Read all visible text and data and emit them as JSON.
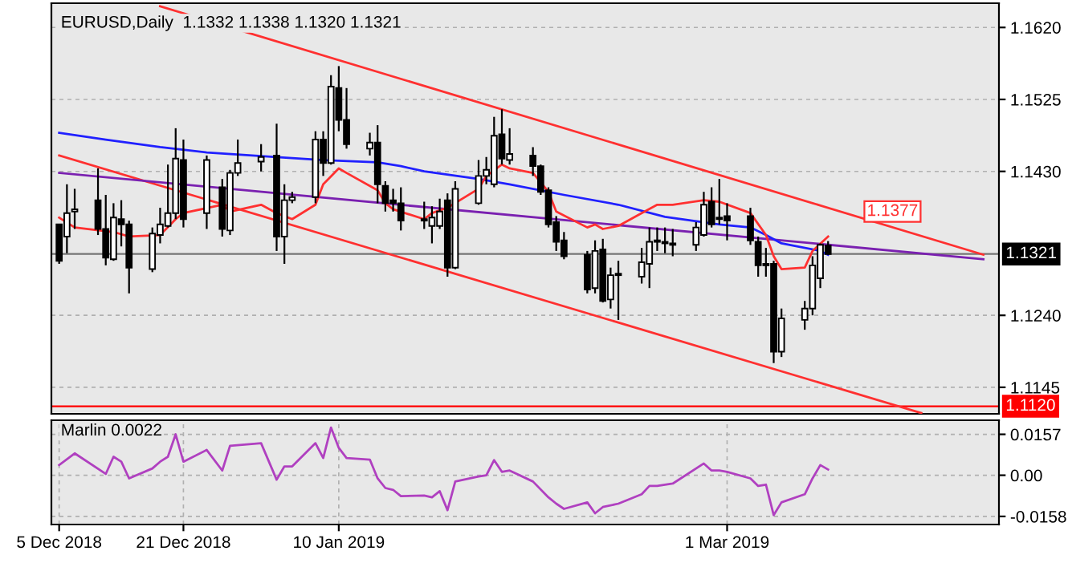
{
  "chart_data": [
    {
      "type": "candlestick",
      "title": "EURUSD,Daily  1.1332 1.1338 1.1320 1.1321",
      "x": [
        "2018-12-05",
        "2018-12-06",
        "2018-12-07",
        "2018-12-10",
        "2018-12-11",
        "2018-12-12",
        "2018-12-13",
        "2018-12-14",
        "2018-12-17",
        "2018-12-18",
        "2018-12-19",
        "2018-12-20",
        "2018-12-21",
        "2018-12-24",
        "2018-12-26",
        "2018-12-27",
        "2018-12-28",
        "2018-12-31",
        "2019-01-02",
        "2019-01-03",
        "2019-01-04",
        "2019-01-07",
        "2019-01-08",
        "2019-01-09",
        "2019-01-10",
        "2019-01-11",
        "2019-01-14",
        "2019-01-15",
        "2019-01-16",
        "2019-01-17",
        "2019-01-18",
        "2019-01-21",
        "2019-01-22",
        "2019-01-23",
        "2019-01-24",
        "2019-01-25",
        "2019-01-28",
        "2019-01-29",
        "2019-01-30",
        "2019-01-31",
        "2019-02-01",
        "2019-02-04",
        "2019-02-05",
        "2019-02-06",
        "2019-02-07",
        "2019-02-08",
        "2019-02-11",
        "2019-02-12",
        "2019-02-13",
        "2019-02-14",
        "2019-02-15",
        "2019-02-18",
        "2019-02-19",
        "2019-02-20",
        "2019-02-21",
        "2019-02-22",
        "2019-02-25",
        "2019-02-26",
        "2019-02-27",
        "2019-02-28",
        "2019-03-01",
        "2019-03-04",
        "2019-03-05",
        "2019-03-06",
        "2019-03-07",
        "2019-03-08",
        "2019-03-11",
        "2019-03-12",
        "2019-03-13",
        "2019-03-14"
      ],
      "ohlc": [
        [
          1.136,
          1.136,
          1.1308,
          1.1312
        ],
        [
          1.1344,
          1.1413,
          1.1322,
          1.1375
        ],
        [
          1.1377,
          1.1407,
          1.1354,
          1.138
        ],
        [
          1.1392,
          1.1434,
          1.1346,
          1.1354
        ],
        [
          1.1354,
          1.1399,
          1.1306,
          1.1316
        ],
        [
          1.1314,
          1.1388,
          1.1312,
          1.1369
        ],
        [
          1.1367,
          1.1392,
          1.1331,
          1.136
        ],
        [
          1.136,
          1.1365,
          1.1269,
          1.1303
        ],
        [
          1.1301,
          1.1356,
          1.1297,
          1.1348
        ],
        [
          1.1346,
          1.1382,
          1.1335,
          1.136
        ],
        [
          1.1358,
          1.1439,
          1.1356,
          1.1375
        ],
        [
          1.1375,
          1.1487,
          1.1367,
          1.1447
        ],
        [
          1.1445,
          1.1472,
          1.1356,
          1.1367
        ],
        [
          1.1375,
          1.1451,
          1.1354,
          1.1445
        ],
        [
          1.1409,
          1.142,
          1.1344,
          1.1354
        ],
        [
          1.1352,
          1.1432,
          1.1346,
          1.1428
        ],
        [
          1.1428,
          1.1472,
          1.1424,
          1.1441
        ],
        [
          1.1443,
          1.1466,
          1.143,
          1.1449
        ],
        [
          1.1451,
          1.1493,
          1.1325,
          1.1344
        ],
        [
          1.1344,
          1.1413,
          1.1308,
          1.1392
        ],
        [
          1.1392,
          1.1403,
          1.1388,
          1.1396
        ],
        [
          1.1396,
          1.1483,
          1.1388,
          1.1472
        ],
        [
          1.1472,
          1.1483,
          1.1424,
          1.1441
        ],
        [
          1.1441,
          1.1557,
          1.1439,
          1.1542
        ],
        [
          1.154,
          1.1569,
          1.1483,
          1.1498
        ],
        [
          1.1498,
          1.154,
          1.146,
          1.1466
        ],
        [
          1.146,
          1.1481,
          1.1451,
          1.1468
        ],
        [
          1.1468,
          1.1491,
          1.1388,
          1.1413
        ],
        [
          1.1411,
          1.1417,
          1.1377,
          1.1388
        ],
        [
          1.1392,
          1.1407,
          1.1377,
          1.1388
        ],
        [
          1.1388,
          1.1409,
          1.1352,
          1.1365
        ],
        [
          1.1367,
          1.139,
          1.1354,
          1.1365
        ],
        [
          1.1358,
          1.1384,
          1.1335,
          1.1369
        ],
        [
          1.1358,
          1.1394,
          1.1354,
          1.1377
        ],
        [
          1.1392,
          1.1401,
          1.1291,
          1.1303
        ],
        [
          1.1303,
          1.1417,
          1.1301,
          1.1407
        ],
        [
          1.1388,
          1.1445,
          1.1386,
          1.1424
        ],
        [
          1.1424,
          1.1449,
          1.1413,
          1.1432
        ],
        [
          1.1413,
          1.1502,
          1.1409,
          1.1477
        ],
        [
          1.1479,
          1.1512,
          1.1439,
          1.1447
        ],
        [
          1.1445,
          1.1487,
          1.1439,
          1.1453
        ],
        [
          1.1451,
          1.1462,
          1.1424,
          1.1437
        ],
        [
          1.1437,
          1.1439,
          1.1399,
          1.1403
        ],
        [
          1.1405,
          1.1409,
          1.1356,
          1.136
        ],
        [
          1.1363,
          1.1371,
          1.1325,
          1.1337
        ],
        [
          1.1339,
          1.135,
          1.1314,
          1.1318
        ],
        [
          1.132,
          1.1325,
          1.1269,
          1.1274
        ],
        [
          1.1276,
          1.1339,
          1.1269,
          1.1325
        ],
        [
          1.1327,
          1.1341,
          1.1257,
          1.1259
        ],
        [
          1.1261,
          1.1303,
          1.1249,
          1.1293
        ],
        [
          1.1293,
          1.1312,
          1.1234,
          1.1295
        ],
        [
          1.1291,
          1.1329,
          1.1282,
          1.131
        ],
        [
          1.1308,
          1.1356,
          1.1276,
          1.1337
        ],
        [
          1.1337,
          1.1356,
          1.1325,
          1.1339
        ],
        [
          1.1335,
          1.1356,
          1.1322,
          1.1337
        ],
        [
          1.1333,
          1.1354,
          1.1318,
          1.1335
        ],
        [
          1.1333,
          1.1363,
          1.1325,
          1.1356
        ],
        [
          1.1346,
          1.1403,
          1.1344,
          1.1386
        ],
        [
          1.139,
          1.1409,
          1.1356,
          1.136
        ],
        [
          1.1369,
          1.142,
          1.136,
          1.1367
        ],
        [
          1.1371,
          1.1388,
          1.1339,
          1.1365
        ],
        [
          1.1371,
          1.1382,
          1.1333,
          1.1339
        ],
        [
          1.1337,
          1.1344,
          1.1291,
          1.1306
        ],
        [
          1.1308,
          1.1329,
          1.1291,
          1.1306
        ],
        [
          1.1308,
          1.1312,
          1.1177,
          1.1192
        ],
        [
          1.1192,
          1.1249,
          1.1185,
          1.1236
        ],
        [
          1.1234,
          1.1259,
          1.1221,
          1.1249
        ],
        [
          1.1249,
          1.1318,
          1.124,
          1.1306
        ],
        [
          1.1289,
          1.1335,
          1.1276,
          1.1333
        ],
        [
          1.1332,
          1.1338,
          1.132,
          1.1321
        ]
      ],
      "series": [
        {
          "type": "line",
          "color": "#ff3030",
          "x": [
            "2018-12-05",
            "2018-12-07",
            "2018-12-12",
            "2018-12-14",
            "2018-12-18",
            "2018-12-20",
            "2018-12-21",
            "2018-12-26",
            "2018-12-27",
            "2018-12-31",
            "2019-01-02",
            "2019-01-04",
            "2019-01-07",
            "2019-01-08",
            "2019-01-10",
            "2019-01-11",
            "2019-01-15",
            "2019-01-16",
            "2019-01-17",
            "2019-01-21",
            "2019-01-22",
            "2019-01-24",
            "2019-01-28",
            "2019-01-29",
            "2019-01-31",
            "2019-02-01",
            "2019-02-04",
            "2019-02-06",
            "2019-02-07",
            "2019-02-11",
            "2019-02-12",
            "2019-02-13",
            "2019-02-15",
            "2019-02-18",
            "2019-02-20",
            "2019-02-22",
            "2019-02-26",
            "2019-02-28",
            "2019-03-04",
            "2019-03-06",
            "2019-03-07",
            "2019-03-08",
            "2019-03-11",
            "2019-03-12",
            "2019-03-14"
          ],
          "values": [
            1.1369,
            1.1356,
            1.135,
            1.1344,
            1.1346,
            1.1367,
            1.1375,
            1.1386,
            1.1377,
            1.1386,
            1.1375,
            1.1367,
            1.1386,
            1.1413,
            1.1434,
            1.1428,
            1.1405,
            1.1388,
            1.138,
            1.1367,
            1.1375,
            1.1382,
            1.1407,
            1.1424,
            1.1439,
            1.1434,
            1.1428,
            1.1403,
            1.1377,
            1.1356,
            1.136,
            1.1354,
            1.1358,
            1.1375,
            1.1386,
            1.1386,
            1.1392,
            1.139,
            1.1375,
            1.1346,
            1.1318,
            1.1301,
            1.1303,
            1.1325,
            1.1344
          ]
        },
        {
          "type": "line",
          "color": "#2020ff",
          "x": [
            "2018-12-05",
            "2018-12-11",
            "2018-12-18",
            "2018-12-24",
            "2019-01-02",
            "2019-01-08",
            "2019-01-15",
            "2019-01-18",
            "2019-01-21",
            "2019-01-28",
            "2019-02-01",
            "2019-02-08",
            "2019-02-15",
            "2019-02-21",
            "2019-02-28",
            "2019-03-04",
            "2019-03-06",
            "2019-03-08",
            "2019-03-13",
            "2019-03-14"
          ],
          "values": [
            1.1481,
            1.1472,
            1.1462,
            1.1455,
            1.1449,
            1.1445,
            1.1442,
            1.1437,
            1.143,
            1.142,
            1.1413,
            1.1399,
            1.1386,
            1.137,
            1.136,
            1.1356,
            1.1346,
            1.1335,
            1.1325,
            1.132
          ]
        },
        {
          "type": "line",
          "color": "#7a20b0",
          "x": [
            "2018-12-05",
            "2019-04-03"
          ],
          "values": [
            1.1428,
            1.1314
          ]
        },
        {
          "type": "line",
          "color": "#ff3030",
          "x": [
            "2018-12-18",
            "2019-04-03"
          ],
          "values": [
            1.1648,
            1.132
          ]
        },
        {
          "type": "line",
          "color": "#ff3030",
          "x": [
            "2018-12-05",
            "2019-03-26"
          ],
          "values": [
            1.1451,
            1.1111
          ]
        }
      ],
      "xlim": [
        "2018-12-04",
        "2019-04-05"
      ],
      "ylim": [
        1.111,
        1.1652
      ],
      "yticks": [
        {
          "value": 1.162,
          "label": "1.1620"
        },
        1.1525,
        {
          "value": 1.143,
          "label": "1.1430"
        },
        {
          "value": 1.124,
          "label": "1.1240"
        },
        1.1145
      ],
      "ref_lines": [
        {
          "axis": "y",
          "value": 1.1321,
          "label": "1.1321",
          "color": "#000000"
        },
        {
          "axis": "y",
          "value": 1.112,
          "label": "1.1120",
          "color": "#ff0000"
        }
      ],
      "annotations": [
        {
          "text": "1.1377",
          "x": "2019-03-19",
          "y": 1.1377
        }
      ],
      "grid": true,
      "tick_labels": "y"
    },
    {
      "type": "line",
      "title": "Marlin 0.0022",
      "x": [
        "2018-12-05",
        "2018-12-07",
        "2018-12-11",
        "2018-12-12",
        "2018-12-13",
        "2018-12-14",
        "2018-12-17",
        "2018-12-18",
        "2018-12-19",
        "2018-12-20",
        "2018-12-21",
        "2018-12-24",
        "2018-12-26",
        "2018-12-27",
        "2018-12-31",
        "2019-01-02",
        "2019-01-03",
        "2019-01-04",
        "2019-01-07",
        "2019-01-08",
        "2019-01-09",
        "2019-01-10",
        "2019-01-11",
        "2019-01-14",
        "2019-01-15",
        "2019-01-16",
        "2019-01-17",
        "2019-01-18",
        "2019-01-21",
        "2019-01-22",
        "2019-01-23",
        "2019-01-24",
        "2019-01-25",
        "2019-01-28",
        "2019-01-29",
        "2019-01-30",
        "2019-01-31",
        "2019-02-01",
        "2019-02-04",
        "2019-02-06",
        "2019-02-07",
        "2019-02-08",
        "2019-02-11",
        "2019-02-12",
        "2019-02-13",
        "2019-02-15",
        "2019-02-18",
        "2019-02-19",
        "2019-02-20",
        "2019-02-22",
        "2019-02-26",
        "2019-02-27",
        "2019-02-28",
        "2019-03-01",
        "2019-03-04",
        "2019-03-05",
        "2019-03-06",
        "2019-03-07",
        "2019-03-08",
        "2019-03-11",
        "2019-03-12",
        "2019-03-13",
        "2019-03-14"
      ],
      "series": [
        {
          "color": "#b040c0",
          "values": [
            0.0039,
            0.0084,
            0.0005,
            0.0071,
            0.0052,
            -0.0012,
            0.0026,
            0.0052,
            0.0071,
            0.0157,
            0.0052,
            0.0097,
            0.0018,
            0.0113,
            0.0123,
            -0.0017,
            0.0034,
            0.0034,
            0.0123,
            0.0066,
            0.0183,
            0.0105,
            0.0066,
            0.006,
            -0.0012,
            -0.0049,
            -0.0056,
            -0.008,
            -0.0078,
            -0.0085,
            -0.0061,
            -0.0134,
            -0.0024,
            -0.0005,
            0.0,
            0.0058,
            0.0013,
            0.0018,
            -0.0024,
            -0.0085,
            -0.0109,
            -0.0129,
            -0.0104,
            -0.0146,
            -0.0122,
            -0.0109,
            -0.0073,
            -0.0041,
            -0.0041,
            -0.0032,
            0.0045,
            0.0018,
            0.0018,
            0.0013,
            -0.0012,
            -0.0041,
            -0.0036,
            -0.0153,
            -0.0104,
            -0.0073,
            -0.0012,
            0.0039,
            0.0022
          ]
        }
      ],
      "xlim": [
        "2018-12-04",
        "2019-04-05"
      ],
      "xticks": [
        {
          "value": "2018-12-05",
          "label": "5 Dec 2018"
        },
        {
          "value": "2018-12-21",
          "label": "21 Dec 2018"
        },
        {
          "value": "2019-01-10",
          "label": "10 Jan 2019"
        },
        {
          "value": "2019-03-01",
          "label": "1 Mar 2019"
        }
      ],
      "ylim": [
        -0.0189,
        0.0211
      ],
      "yticks": [
        0.0157,
        {
          "value": 0,
          "label": "0.00"
        },
        -0.0158
      ],
      "grid": true
    }
  ]
}
